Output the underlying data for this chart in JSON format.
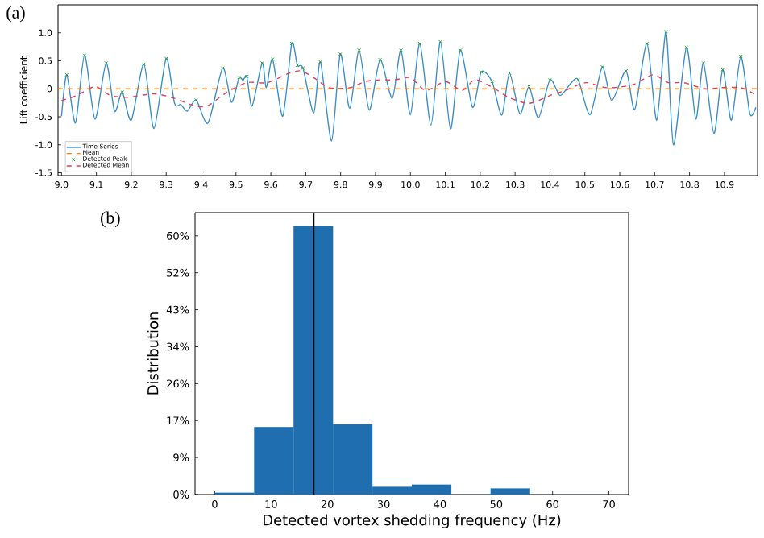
{
  "chart_data": [
    {
      "type": "line",
      "title": "(a)",
      "ylabel": "Lift coefficient",
      "legend": "bottom left",
      "xlim": [
        8.99,
        10.995
      ],
      "ylim": [
        -1.55,
        1.5
      ],
      "xticks": [
        {
          "value": 9,
          "label": "9.0"
        },
        9.1,
        9.2,
        9.3,
        9.4,
        9.5,
        9.6,
        9.7,
        9.8,
        9.9,
        {
          "value": 10,
          "label": "10.0"
        },
        10.1,
        10.2,
        10.3,
        10.4,
        10.5,
        10.6,
        10.7,
        10.8,
        10.9
      ],
      "yticks": [
        {
          "value": -1.5,
          "label": "-1.5"
        },
        {
          "value": -1,
          "label": "-1.0"
        },
        {
          "value": -0.5,
          "label": "-0.5"
        },
        0,
        0.5,
        {
          "value": 1,
          "label": "1.0"
        }
      ],
      "series": [
        {
          "name": "Time Series",
          "type": "line",
          "color": "#3b8fc7",
          "line_style": "solid",
          "marker": "none",
          "x": [
            9.0,
            9.015,
            9.04,
            9.066,
            9.096,
            9.128,
            9.152,
            9.174,
            9.2,
            9.236,
            9.265,
            9.3,
            9.324,
            9.342,
            9.36,
            9.386,
            9.42,
            9.462,
            9.487,
            9.509,
            9.52,
            9.531,
            9.546,
            9.575,
            9.587,
            9.605,
            9.634,
            9.66,
            9.676,
            9.692,
            9.723,
            9.742,
            9.774,
            9.799,
            9.826,
            9.853,
            9.882,
            9.913,
            9.948,
            9.973,
            10.0,
            10.027,
            10.059,
            10.086,
            10.115,
            10.143,
            10.178,
            10.203,
            10.234,
            10.262,
            10.284,
            10.314,
            10.34,
            10.367,
            10.4,
            10.429,
            10.46,
            10.481,
            10.515,
            10.55,
            10.577,
            10.618,
            10.643,
            10.678,
            10.706,
            10.733,
            10.754,
            10.791,
            10.818,
            10.84,
            10.87,
            10.895,
            10.92,
            10.947,
            10.973,
            10.99
          ],
          "values": [
            -0.49,
            0.25,
            -0.61,
            0.6,
            -0.54,
            0.46,
            -0.4,
            -0.06,
            -0.56,
            0.44,
            -0.71,
            0.54,
            -0.26,
            -0.28,
            -0.4,
            -0.2,
            -0.61,
            0.37,
            -0.24,
            0.2,
            0.15,
            0.22,
            -0.31,
            0.46,
            0.02,
            0.53,
            -0.49,
            0.81,
            0.42,
            0.37,
            -0.43,
            0.48,
            -0.93,
            0.62,
            -0.35,
            0.69,
            -0.38,
            0.52,
            -0.17,
            0.69,
            -0.46,
            0.81,
            -0.65,
            0.84,
            -0.72,
            0.69,
            -0.33,
            0.3,
            0.13,
            -0.47,
            0.28,
            -0.45,
            0.04,
            -0.52,
            0.16,
            -0.12,
            0.1,
            0.16,
            -0.46,
            0.39,
            -0.21,
            0.32,
            -0.37,
            0.81,
            -0.56,
            1.02,
            -1.0,
            0.74,
            -0.54,
            0.46,
            -0.8,
            0.34,
            -0.56,
            0.58,
            -0.45,
            -0.33
          ]
        },
        {
          "name": "Mean",
          "type": "line",
          "color": "#ff7f0e",
          "line_style": "dashed",
          "marker": "none",
          "x": [
            8.99,
            10.995
          ],
          "values": [
            0,
            0
          ]
        },
        {
          "name": "Detected Peak",
          "type": "scatter",
          "color": "#2ca02c",
          "marker": "cross",
          "x": [
            9.015,
            9.066,
            9.128,
            9.174,
            9.236,
            9.3,
            9.386,
            9.462,
            9.509,
            9.531,
            9.575,
            9.605,
            9.66,
            9.676,
            9.692,
            9.742,
            9.799,
            9.853,
            9.913,
            9.973,
            10.027,
            10.086,
            10.143,
            10.203,
            10.234,
            10.284,
            10.34,
            10.4,
            10.481,
            10.55,
            10.618,
            10.678,
            10.733,
            10.791,
            10.84,
            10.895,
            10.947
          ],
          "values": [
            0.25,
            0.6,
            0.46,
            -0.06,
            0.44,
            0.54,
            -0.2,
            0.37,
            0.2,
            0.22,
            0.46,
            0.53,
            0.81,
            0.42,
            0.37,
            0.48,
            0.62,
            0.69,
            0.52,
            0.69,
            0.81,
            0.84,
            0.69,
            0.3,
            0.13,
            0.28,
            0.04,
            0.16,
            0.16,
            0.39,
            0.32,
            0.81,
            1.02,
            0.74,
            0.46,
            0.34,
            0.58
          ]
        },
        {
          "name": "Detected Mean",
          "type": "line",
          "color": "#e0405a",
          "line_style": "dashed",
          "marker": "none",
          "x": [
            9.0,
            9.044,
            9.096,
            9.14,
            9.192,
            9.265,
            9.324,
            9.383,
            9.42,
            9.472,
            9.531,
            9.59,
            9.649,
            9.686,
            9.723,
            9.767,
            9.826,
            9.87,
            9.914,
            9.956,
            10.0,
            10.044,
            10.1,
            10.148,
            10.185,
            10.237,
            10.281,
            10.34,
            10.4,
            10.444,
            10.503,
            10.562,
            10.636,
            10.695,
            10.74,
            10.784,
            10.843,
            10.888,
            10.947,
            10.984
          ],
          "values": [
            -0.21,
            -0.12,
            0.04,
            -0.12,
            -0.15,
            -0.09,
            -0.17,
            -0.31,
            -0.3,
            -0.07,
            0.11,
            0.11,
            0.27,
            0.32,
            0.2,
            0.02,
            0.02,
            0.13,
            0.16,
            0.16,
            0.2,
            -0.03,
            0.13,
            -0.03,
            0.16,
            0.02,
            -0.15,
            -0.26,
            -0.12,
            -0.03,
            0.11,
            0.02,
            0.07,
            0.25,
            0.11,
            0.11,
            0,
            0.02,
            0.02,
            -0.09
          ]
        }
      ]
    },
    {
      "type": "histogram",
      "title": "(b)",
      "xlabel": "Detected vortex shedding frequency (Hz)",
      "ylabel": "Distribution",
      "color": "#1f6fb0",
      "bins": [
        0,
        7,
        14,
        21,
        28,
        35,
        42,
        49,
        56,
        63,
        70
      ],
      "values": [
        0.4,
        15.7,
        62.5,
        16.3,
        1.8,
        2.3,
        0,
        1.4,
        0,
        0
      ],
      "xlim": [
        -3.5,
        73.5
      ],
      "ylim": [
        0,
        65.6
      ],
      "xticks": [
        0,
        10,
        20,
        30,
        40,
        50,
        60,
        70
      ],
      "yticks": [
        {
          "value": 0,
          "label": "0%"
        },
        {
          "value": 8.6,
          "label": "9%"
        },
        {
          "value": 17.2,
          "label": "17%"
        },
        {
          "value": 25.8,
          "label": "26%"
        },
        {
          "value": 34.4,
          "label": "34%"
        },
        {
          "value": 43,
          "label": "43%"
        },
        {
          "value": 51.6,
          "label": "52%"
        },
        {
          "value": 60.2,
          "label": "60%"
        }
      ],
      "ref_lines": [
        {
          "axis": "x",
          "value": 17.6,
          "color": "#000000"
        }
      ]
    }
  ]
}
